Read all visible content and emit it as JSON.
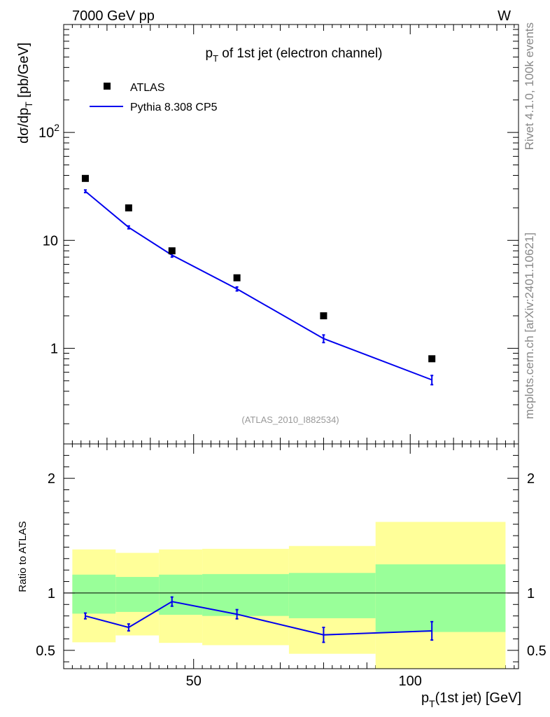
{
  "header": {
    "energy_label": "7000 GeV pp",
    "process_label": "W"
  },
  "side_text": {
    "generator_info": "Rivet 4.1.0,  100k events",
    "source": "mcplots.cern.ch [arXiv:2401.10621]"
  },
  "reference": "(ATLAS_2010_I882534)",
  "colors": {
    "mc": "#0000ee",
    "data": "#000000",
    "band_inner": "#99ff99",
    "band_outer": "#ffff99"
  },
  "chart_data": [
    {
      "type": "line",
      "panel": "main",
      "title": {
        "base": "p",
        "sub": "T",
        "rest": " of 1st jet (electron channel)"
      },
      "ylabel": {
        "main": "dσ/dp",
        "sub": "T",
        "unit": " [pb/GeV]"
      },
      "xlabel": {
        "main": "p",
        "sub": "T",
        "rest": "(1st jet) [GeV]"
      },
      "yscale": "log",
      "xlim": [
        20,
        125
      ],
      "ylim": [
        0.13,
        1000
      ],
      "x_ticks": [
        "50",
        "100"
      ],
      "y_ticks": [
        {
          "value": 1,
          "label": "1"
        },
        {
          "value": 10,
          "label": "10"
        },
        {
          "value": 100,
          "label": "10",
          "sup": "2"
        }
      ],
      "legend": {
        "position": "top-left",
        "entries": [
          "ATLAS",
          "Pythia 8.308 CP5"
        ]
      },
      "series": [
        {
          "name": "ATLAS",
          "style": "markers",
          "x": [
            25,
            35,
            45,
            60,
            80,
            105
          ],
          "y": [
            37.5,
            20.0,
            8.0,
            4.5,
            2.0,
            0.8
          ]
        },
        {
          "name": "Pythia 8.308 CP5",
          "style": "line",
          "x": [
            25,
            35,
            45,
            60,
            80,
            105
          ],
          "y": [
            28.5,
            13.2,
            7.3,
            3.55,
            1.23,
            0.51
          ],
          "err": [
            0.8,
            0.4,
            0.3,
            0.15,
            0.1,
            0.05
          ]
        }
      ]
    },
    {
      "type": "line",
      "panel": "ratio",
      "ylabel": "Ratio to ATLAS",
      "xlim": [
        20,
        125
      ],
      "ylim": [
        0.34,
        2.3
      ],
      "y_ticks": [
        {
          "value": 0.5,
          "label": "0.5"
        },
        {
          "value": 1,
          "label": "1"
        },
        {
          "value": 2,
          "label": "2"
        }
      ],
      "reference_line": 1,
      "bands": {
        "bins": [
          [
            22,
            32
          ],
          [
            32,
            42
          ],
          [
            42,
            52
          ],
          [
            52,
            72
          ],
          [
            72,
            92
          ],
          [
            92,
            122
          ]
        ],
        "inner_low": [
          0.82,
          0.835,
          0.81,
          0.8,
          0.78,
          0.66
        ],
        "inner_high": [
          1.16,
          1.14,
          1.16,
          1.165,
          1.175,
          1.25
        ],
        "outer_low": [
          0.57,
          0.63,
          0.565,
          0.545,
          0.47,
          0.34
        ],
        "outer_high": [
          1.38,
          1.35,
          1.38,
          1.385,
          1.41,
          1.62
        ]
      },
      "series": [
        {
          "name": "Pythia 8.308 CP5",
          "x": [
            25,
            35,
            45,
            60,
            80,
            105
          ],
          "y": [
            0.8,
            0.7,
            0.925,
            0.815,
            0.635,
            0.67
          ],
          "err": [
            0.025,
            0.03,
            0.04,
            0.04,
            0.065,
            0.08
          ]
        }
      ]
    }
  ]
}
